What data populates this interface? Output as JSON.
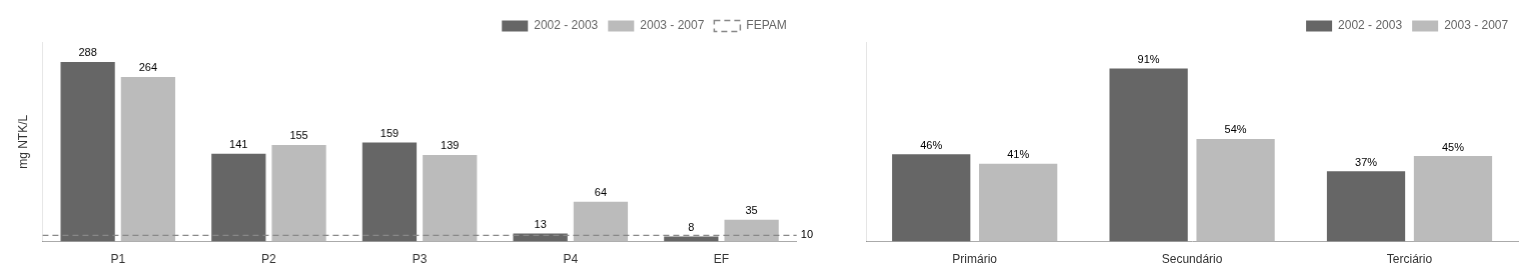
{
  "chart_data": [
    {
      "type": "bar",
      "categories": [
        "P1",
        "P2",
        "P3",
        "P4",
        "EF"
      ],
      "series": [
        {
          "name": "2002 - 2003",
          "color": "#666666",
          "values": [
            288,
            141,
            159,
            13,
            8
          ]
        },
        {
          "name": "2003 - 2007",
          "color": "#bbbbbb",
          "values": [
            264,
            155,
            139,
            64,
            35
          ]
        }
      ],
      "ylabel": "mg NTK/L",
      "ylim": [
        0,
        320
      ],
      "tick_labels": "x",
      "grid": false,
      "legend": "upper right",
      "data_labels": true,
      "annotations": [
        {
          "type": "hline",
          "value": 10,
          "label": "10",
          "name": "FEPAM",
          "color": "#888888",
          "line_style": "dashed"
        }
      ]
    },
    {
      "type": "bar",
      "categories": [
        "Primário",
        "Secundário",
        "Terciário"
      ],
      "series": [
        {
          "name": "2002 - 2003",
          "color": "#666666",
          "values": [
            46,
            91,
            37
          ],
          "value_labels": [
            "46%",
            "91%",
            "37%"
          ]
        },
        {
          "name": "2003 - 2007",
          "color": "#bbbbbb",
          "values": [
            41,
            54,
            45
          ],
          "value_labels": [
            "41%",
            "54%",
            "45%"
          ]
        }
      ],
      "ylim": [
        0,
        105
      ],
      "tick_labels": "x",
      "grid": false,
      "legend": "upper right",
      "data_labels": true
    }
  ]
}
